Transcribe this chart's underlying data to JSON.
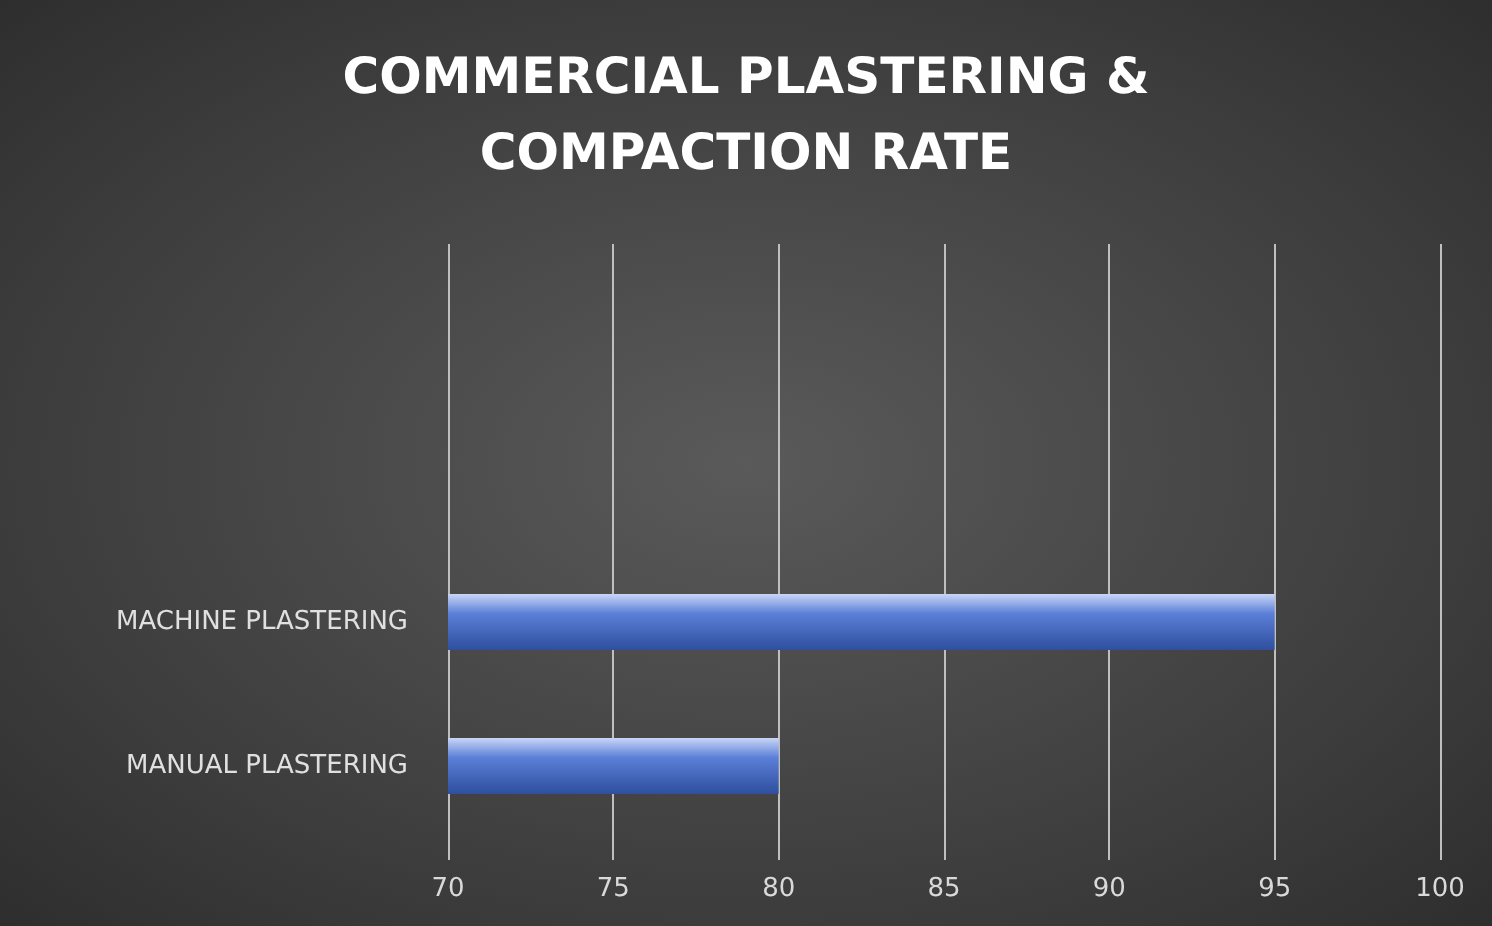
{
  "chart_data": {
    "type": "bar",
    "orientation": "horizontal",
    "title": "COMMERCIAL PLASTERING &\nCOMPACTION RATE",
    "categories": [
      "MACHINE PLASTERING",
      "MANUAL PLASTERING"
    ],
    "values": [
      95,
      80
    ],
    "color": "#5b7fd8",
    "xlim": [
      70,
      100
    ],
    "xticks": [
      70,
      75,
      80,
      85,
      90,
      95,
      100
    ],
    "grid": "x"
  }
}
